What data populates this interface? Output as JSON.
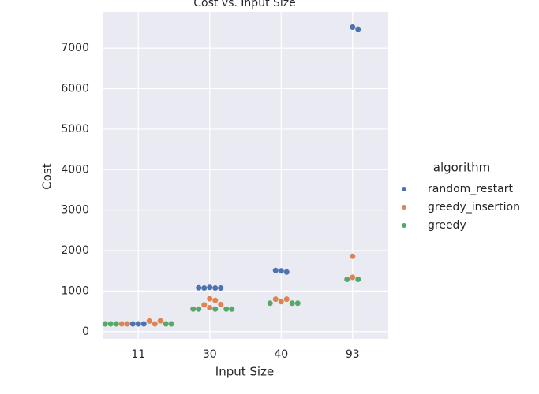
{
  "chart_data": {
    "type": "swarm",
    "title": "Cost vs. Input Size",
    "x_label": "Input Size",
    "y_label": "Cost",
    "categories": [
      "11",
      "30",
      "40",
      "93"
    ],
    "legend_title": "algorithm",
    "legend_position": "right",
    "grid": true,
    "ylim": [
      -180,
      7900
    ],
    "yticks": [
      0,
      1000,
      2000,
      3000,
      4000,
      5000,
      6000,
      7000
    ],
    "series": [
      {
        "name": "random_restart",
        "color": "#4c72b0",
        "x": [
          "11",
          "11",
          "11",
          "30",
          "30",
          "30",
          "30",
          "30",
          "40",
          "40",
          "40",
          "93",
          "93"
        ],
        "values": [
          190,
          190,
          190,
          1090,
          1075,
          1075,
          1075,
          1080,
          1500,
          1470,
          1510,
          7520,
          7470
        ]
      },
      {
        "name": "greedy_insertion",
        "color": "#dd8452",
        "x": [
          "11",
          "11",
          "11",
          "11",
          "11",
          "30",
          "30",
          "30",
          "30",
          "30",
          "40",
          "40",
          "40",
          "93",
          "93"
        ],
        "values": [
          260,
          190,
          190,
          190,
          265,
          590,
          810,
          770,
          660,
          670,
          740,
          800,
          800,
          1860,
          1340
        ]
      },
      {
        "name": "greedy",
        "color": "#55a868",
        "x": [
          "11",
          "11",
          "11",
          "11",
          "11",
          "30",
          "30",
          "30",
          "30",
          "30",
          "40",
          "40",
          "40",
          "93",
          "93"
        ],
        "values": [
          190,
          190,
          190,
          190,
          190,
          555,
          555,
          555,
          555,
          555,
          700,
          700,
          700,
          1290,
          1290
        ]
      }
    ]
  }
}
